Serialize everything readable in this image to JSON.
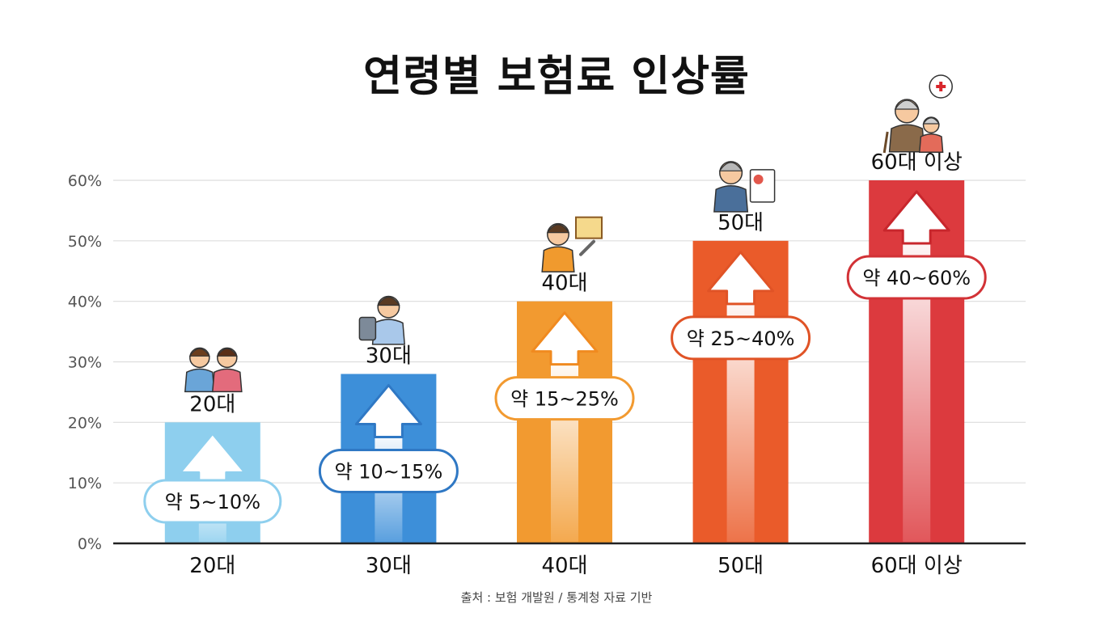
{
  "chart_data": {
    "type": "bar",
    "title": "연령별 보험료 인상률",
    "categories": [
      "20대",
      "30대",
      "40대",
      "50대",
      "60대 이상"
    ],
    "values": [
      20,
      28,
      40,
      50,
      60
    ],
    "ranges": [
      "약 5~10%",
      "약 10~15%",
      "약 15~25%",
      "약 25~40%",
      "약 40~60%"
    ],
    "ylim": [
      0,
      60
    ],
    "yticks": [
      "0%",
      "10%",
      "20%",
      "30%",
      "40%",
      "50%",
      "60%"
    ],
    "grid": true,
    "colors": [
      "#8ecfee",
      "#3d8fd9",
      "#f29a30",
      "#ea5b2a",
      "#dc3a3e"
    ],
    "pill_border_colors": [
      "#8ecfee",
      "#2f78c4",
      "#f29a30",
      "#e05326",
      "#d23236"
    ],
    "arrow_colors": [
      "#8ecfee",
      "#2f78c4",
      "#f08a1f",
      "#e05326",
      "#c8262c"
    ],
    "icons": [
      "students-icon",
      "woman-with-tablet-icon",
      "worker-with-tools-icon",
      "man-with-document-icon",
      "elderly-couple-icon"
    ]
  },
  "source": "출처 : 보험 개발원 / 통계청 자료 기반"
}
